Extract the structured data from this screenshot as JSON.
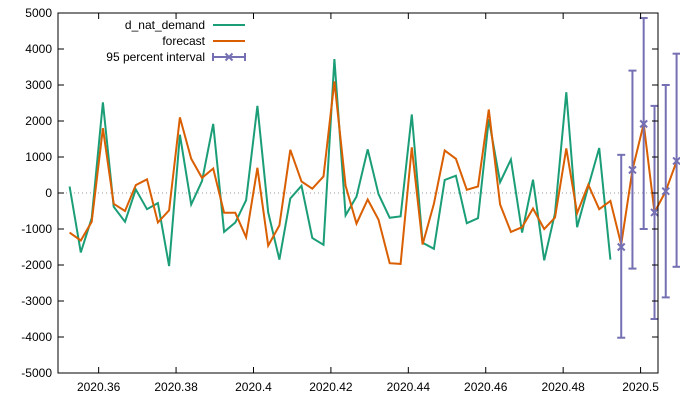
{
  "chart_data": {
    "type": "line",
    "title": "",
    "xlabel": "",
    "ylabel": "",
    "xlim": [
      2020.3495,
      2020.5045
    ],
    "ylim": [
      -5000,
      5000
    ],
    "x_ticks": [
      {
        "value": 2020.36,
        "label": "2020.36"
      },
      {
        "value": 2020.38,
        "label": "2020.38"
      },
      {
        "value": 2020.4,
        "label": "2020.4"
      },
      {
        "value": 2020.42,
        "label": "2020.42"
      },
      {
        "value": 2020.44,
        "label": "2020.44"
      },
      {
        "value": 2020.46,
        "label": "2020.46"
      },
      {
        "value": 2020.48,
        "label": "2020.48"
      },
      {
        "value": 2020.5,
        "label": "2020.5"
      }
    ],
    "y_ticks": [
      {
        "value": 5000,
        "label": "5000"
      },
      {
        "value": 4000,
        "label": "4000"
      },
      {
        "value": 3000,
        "label": "3000"
      },
      {
        "value": 2000,
        "label": "2000"
      },
      {
        "value": 1000,
        "label": "1000"
      },
      {
        "value": 0,
        "label": "0"
      },
      {
        "value": -1000,
        "label": "-1000"
      },
      {
        "value": -2000,
        "label": "-2000"
      },
      {
        "value": -3000,
        "label": "-3000"
      },
      {
        "value": -4000,
        "label": "-4000"
      },
      {
        "value": -5000,
        "label": "-5000"
      }
    ],
    "grid": false,
    "zero_line": "dotted",
    "legend_position": "top-left",
    "series": [
      {
        "name": "d_nat_demand",
        "color": "#1b9e77",
        "values": [
          [
            2020.3525,
            180
          ],
          [
            2020.3554,
            -1650
          ],
          [
            2020.3582,
            -700
          ],
          [
            2020.3611,
            2520
          ],
          [
            2020.3639,
            -380
          ],
          [
            2020.3668,
            -800
          ],
          [
            2020.3696,
            100
          ],
          [
            2020.3725,
            -450
          ],
          [
            2020.3753,
            -280
          ],
          [
            2020.3782,
            -2030
          ],
          [
            2020.381,
            1620
          ],
          [
            2020.3839,
            -320
          ],
          [
            2020.3867,
            330
          ],
          [
            2020.3896,
            1920
          ],
          [
            2020.3924,
            -1080
          ],
          [
            2020.3953,
            -820
          ],
          [
            2020.3981,
            -200
          ],
          [
            2020.401,
            2420
          ],
          [
            2020.4038,
            -540
          ],
          [
            2020.4067,
            -1850
          ],
          [
            2020.4095,
            -150
          ],
          [
            2020.4124,
            200
          ],
          [
            2020.4152,
            -1250
          ],
          [
            2020.4181,
            -1440
          ],
          [
            2020.4209,
            3720
          ],
          [
            2020.4238,
            -620
          ],
          [
            2020.4266,
            -100
          ],
          [
            2020.4295,
            1210
          ],
          [
            2020.4323,
            -30
          ],
          [
            2020.4352,
            -690
          ],
          [
            2020.438,
            -650
          ],
          [
            2020.4409,
            2180
          ],
          [
            2020.4437,
            -1380
          ],
          [
            2020.4466,
            -1550
          ],
          [
            2020.4494,
            360
          ],
          [
            2020.4523,
            480
          ],
          [
            2020.4551,
            -840
          ],
          [
            2020.458,
            -700
          ],
          [
            2020.4608,
            2050
          ],
          [
            2020.4637,
            300
          ],
          [
            2020.4665,
            930
          ],
          [
            2020.4694,
            -1100
          ],
          [
            2020.4722,
            370
          ],
          [
            2020.4751,
            -1870
          ],
          [
            2020.4779,
            -560
          ],
          [
            2020.4808,
            2800
          ],
          [
            2020.4836,
            -950
          ],
          [
            2020.4865,
            180
          ],
          [
            2020.4893,
            1250
          ],
          [
            2020.4922,
            -1850
          ]
        ]
      },
      {
        "name": "forecast",
        "color": "#d95f02",
        "values": [
          [
            2020.3525,
            -1100
          ],
          [
            2020.3554,
            -1320
          ],
          [
            2020.3582,
            -800
          ],
          [
            2020.3611,
            1800
          ],
          [
            2020.3639,
            -300
          ],
          [
            2020.3668,
            -500
          ],
          [
            2020.3696,
            220
          ],
          [
            2020.3725,
            380
          ],
          [
            2020.3753,
            -820
          ],
          [
            2020.3782,
            -480
          ],
          [
            2020.381,
            2100
          ],
          [
            2020.3839,
            950
          ],
          [
            2020.3867,
            420
          ],
          [
            2020.3896,
            680
          ],
          [
            2020.3924,
            -550
          ],
          [
            2020.3953,
            -550
          ],
          [
            2020.3981,
            -1230
          ],
          [
            2020.401,
            700
          ],
          [
            2020.4038,
            -1460
          ],
          [
            2020.4067,
            -900
          ],
          [
            2020.4095,
            1200
          ],
          [
            2020.4124,
            320
          ],
          [
            2020.4152,
            120
          ],
          [
            2020.4181,
            460
          ],
          [
            2020.4209,
            3100
          ],
          [
            2020.4238,
            200
          ],
          [
            2020.4266,
            -850
          ],
          [
            2020.4295,
            -180
          ],
          [
            2020.4323,
            -740
          ],
          [
            2020.4352,
            -1950
          ],
          [
            2020.438,
            -1970
          ],
          [
            2020.4409,
            1270
          ],
          [
            2020.4437,
            -1430
          ],
          [
            2020.4466,
            -300
          ],
          [
            2020.4494,
            1180
          ],
          [
            2020.4523,
            950
          ],
          [
            2020.4551,
            90
          ],
          [
            2020.458,
            180
          ],
          [
            2020.4608,
            2320
          ],
          [
            2020.4637,
            -320
          ],
          [
            2020.4665,
            -1080
          ],
          [
            2020.4694,
            -950
          ],
          [
            2020.4722,
            -430
          ],
          [
            2020.4751,
            -1000
          ],
          [
            2020.4779,
            -680
          ],
          [
            2020.4808,
            1240
          ],
          [
            2020.4836,
            -560
          ],
          [
            2020.4865,
            230
          ],
          [
            2020.4893,
            -450
          ],
          [
            2020.4922,
            -220
          ],
          [
            2020.495,
            -1430
          ],
          [
            2020.4979,
            650
          ],
          [
            2020.5008,
            1920
          ],
          [
            2020.5036,
            -540
          ],
          [
            2020.5065,
            50
          ],
          [
            2020.5093,
            880
          ]
        ]
      },
      {
        "name": "95 percent interval",
        "color": "#7570b3",
        "type": "errorbar",
        "values": [
          {
            "x": 2020.495,
            "y": -1500,
            "low": -4020,
            "high": 1060
          },
          {
            "x": 2020.4979,
            "y": 640,
            "low": -2100,
            "high": 3400
          },
          {
            "x": 2020.5008,
            "y": 1920,
            "low": -1000,
            "high": 4860
          },
          {
            "x": 2020.5036,
            "y": -540,
            "low": -3500,
            "high": 2420
          },
          {
            "x": 2020.5065,
            "y": 50,
            "low": -2900,
            "high": 3000
          },
          {
            "x": 2020.5093,
            "y": 890,
            "low": -2050,
            "high": 3870
          }
        ]
      }
    ]
  }
}
